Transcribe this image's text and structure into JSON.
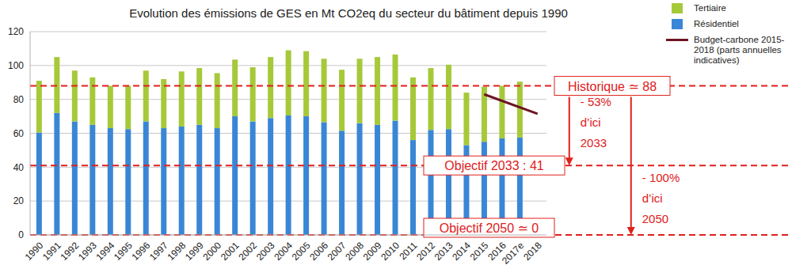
{
  "chart_data": {
    "type": "bar",
    "title": "Evolution des émissions de GES en Mt CO2eq du secteur du bâtiment depuis 1990",
    "stacked": true,
    "grid": true,
    "legend": "right",
    "categories": [
      "1990",
      "1991",
      "1992",
      "1993",
      "1994",
      "1995",
      "1996",
      "1997",
      "1998",
      "1999",
      "2000",
      "2001",
      "2002",
      "2003",
      "2004",
      "2005",
      "2006",
      "2007",
      "2008",
      "2009",
      "2010",
      "2011",
      "2012",
      "2013",
      "2014",
      "2015",
      "2016",
      "2017e",
      "2018"
    ],
    "ylim": [
      0,
      120
    ],
    "yticks": [
      0,
      20,
      40,
      60,
      80,
      100,
      120
    ],
    "series": [
      {
        "name": "Tertiaire",
        "color": "#a6c93a",
        "values": [
          30.5,
          33,
          30,
          28,
          25,
          25.5,
          30,
          29,
          32.5,
          33.5,
          32.5,
          33.5,
          32,
          36,
          38.5,
          38.5,
          37.5,
          36,
          38,
          40,
          39,
          37,
          36.5,
          38,
          31,
          32.5,
          31,
          33,
          null
        ]
      },
      {
        "name": "Résidentiel",
        "color": "#3a86d6",
        "values": [
          60.5,
          72,
          67,
          65,
          63,
          62.5,
          67,
          63,
          64,
          65,
          63,
          70,
          67,
          69,
          70.5,
          70,
          66.5,
          61.5,
          66,
          65,
          67.5,
          56,
          62,
          62.5,
          53,
          55,
          57,
          57.5,
          null
        ]
      },
      {
        "name": "Budget-carbone 2015-2018 (parts annuelles indicatives)",
        "type": "line",
        "color": "#6e1423",
        "values": [
          null,
          null,
          null,
          null,
          null,
          null,
          null,
          null,
          null,
          null,
          null,
          null,
          null,
          null,
          null,
          null,
          null,
          null,
          null,
          null,
          null,
          null,
          null,
          null,
          null,
          83,
          null,
          null,
          71.5
        ]
      }
    ],
    "annotations": {
      "reference_lines": [
        {
          "value": 88,
          "label": "Historique ≃ 88"
        },
        {
          "value": 41,
          "label": "Objectif 2033 : 41"
        },
        {
          "value": 0,
          "label": "Objectif 2050 ≃ 0"
        }
      ],
      "arrows": [
        {
          "from": 88,
          "to": 41,
          "text": [
            "- 53%",
            "d’ici",
            "2033"
          ]
        },
        {
          "from": 88,
          "to": 0,
          "text": [
            "- 100%",
            "d’ici",
            "2050"
          ]
        }
      ]
    }
  }
}
